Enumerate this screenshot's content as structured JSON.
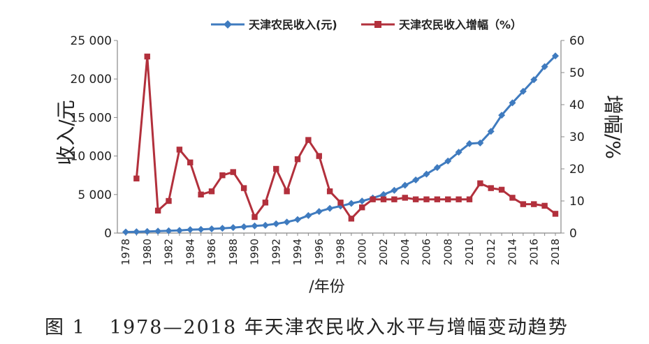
{
  "chart_data": {
    "type": "line",
    "x": [
      1978,
      1979,
      1980,
      1981,
      1982,
      1983,
      1984,
      1985,
      1986,
      1987,
      1988,
      1989,
      1990,
      1991,
      1992,
      1993,
      1994,
      1995,
      1996,
      1997,
      1998,
      1999,
      2000,
      2001,
      2002,
      2003,
      2004,
      2005,
      2006,
      2007,
      2008,
      2009,
      2010,
      2011,
      2012,
      2013,
      2014,
      2015,
      2016,
      2017,
      2018
    ],
    "xticks": [
      "1978",
      "1980",
      "1982",
      "1984",
      "1986",
      "1988",
      "1990",
      "1992",
      "1994",
      "1996",
      "1998",
      "2000",
      "2002",
      "2004",
      "2006",
      "2008",
      "2010",
      "2012",
      "2014",
      "2016",
      "2018"
    ],
    "xlabel": "/年份",
    "ylabel_left": "收入/元",
    "ylabel_right": "增幅/%",
    "ylim_left": [
      0,
      25000
    ],
    "ylim_right": [
      0,
      60
    ],
    "yticks_left": [
      "0",
      "5 000",
      "10 000",
      "15 000",
      "20 000",
      "25 000"
    ],
    "yticks_right": [
      "0",
      "10",
      "20",
      "30",
      "40",
      "50",
      "60"
    ],
    "grid": false,
    "legend_position": "top-center",
    "series": [
      {
        "name": "天津农民收入(元)",
        "axis": "left",
        "color": "#3f7bbf",
        "marker": "diamond",
        "values": [
          140,
          165,
          200,
          250,
          290,
          345,
          440,
          480,
          540,
          620,
          710,
          820,
          930,
          1010,
          1200,
          1430,
          1750,
          2280,
          2800,
          3200,
          3500,
          3850,
          4150,
          4550,
          5000,
          5550,
          6200,
          6900,
          7650,
          8500,
          9350,
          10500,
          11600,
          11700,
          13200,
          15300,
          16900,
          18400,
          19900,
          21600,
          23000
        ]
      },
      {
        "name": "天津农民收入增幅（%）",
        "axis": "right",
        "color": "#b2303c",
        "marker": "square",
        "values": [
          null,
          17,
          55,
          7,
          10,
          26,
          22,
          12,
          13,
          18,
          19,
          14,
          5,
          9.5,
          20,
          13,
          23,
          29,
          24,
          13,
          9.5,
          4.5,
          8,
          10.5,
          10.5,
          10.5,
          11,
          10.5,
          10.5,
          10.5,
          10.5,
          10.5,
          10.5,
          15.5,
          14,
          13.5,
          11,
          9,
          9,
          8.5,
          6
        ]
      }
    ]
  },
  "caption": {
    "figure_number": "图 1",
    "text": "1978—2018 年天津农民收入水平与增幅变动趋势"
  }
}
